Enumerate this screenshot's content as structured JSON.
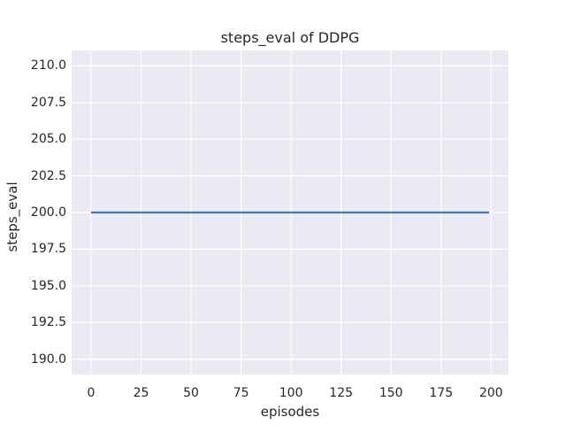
{
  "chart_data": {
    "type": "line",
    "title": "steps_eval of DDPG",
    "xlabel": "episodes",
    "ylabel": "steps_eval",
    "series": [
      {
        "name": "DDPG",
        "x": [
          0,
          199
        ],
        "y": [
          200,
          200
        ],
        "color": "#4c72b0"
      }
    ],
    "xlim": [
      -9.7,
      208.7
    ],
    "ylim": [
      188.95,
      211.05
    ],
    "xticks": {
      "values": [
        0,
        25,
        50,
        75,
        100,
        125,
        150,
        175,
        200
      ],
      "labels": [
        "0",
        "25",
        "50",
        "75",
        "100",
        "125",
        "150",
        "175",
        "200"
      ]
    },
    "yticks": {
      "values": [
        190,
        192.5,
        195,
        197.5,
        200,
        202.5,
        205,
        207.5,
        210
      ],
      "labels": [
        "190.0",
        "192.5",
        "195.0",
        "197.5",
        "200.0",
        "202.5",
        "205.0",
        "207.5",
        "210.0"
      ]
    },
    "grid": true,
    "legend": "none",
    "style": {
      "figure_background": "#ffffff",
      "plot_background": "#eaeaf2",
      "grid_color": "#ffffff",
      "text_color": "#262626",
      "line_color": "#4c72b0"
    }
  }
}
